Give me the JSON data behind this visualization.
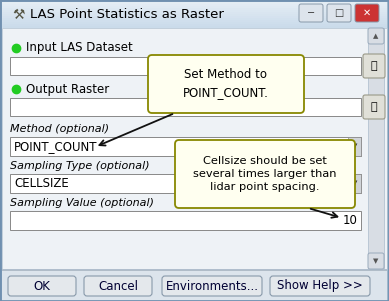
{
  "title": "LAS Point Statistics as Raster",
  "title_bar_bg": "#c8daea",
  "title_bar_gradient": "#b8cede",
  "dialog_bg": "#eef2f6",
  "body_bg": "#eef2f6",
  "border_color": "#a0b8cc",
  "title_text_color": "#000000",
  "input_label": "Input LAS Dataset",
  "output_label": "Output Raster",
  "method_label": "Method (optional)",
  "method_value": "POINT_COUNT",
  "sampling_type_label": "Sampling Type (optional)",
  "sampling_type_value": "CELLSIZE",
  "sampling_value_label": "Sampling Value (optional)",
  "sampling_value": "10",
  "callout1_text": "Set Method to\nPOINT_COUNT.",
  "callout2_text": "Cellsize should be set\nseveral times larger than\nlidar point spacing.",
  "btn_ok": "OK",
  "btn_cancel": "Cancel",
  "btn_env": "Environments...",
  "btn_help": "Show Help >>",
  "green_dot_color": "#22cc22",
  "callout_bg": "#fffff0",
  "callout_border": "#888800",
  "field_bg": "#ffffff",
  "field_border": "#888888",
  "scrollbar_bg": "#d8dde4",
  "btn_bg": "#e4e8ec",
  "btn_border": "#8899aa",
  "btn_footer_bg": "#dde4ec",
  "separator_color": "#b0bcc8",
  "win_btn_normal": "#dde4ec",
  "win_btn_close": "#cc3333",
  "win_btn_border": "#8899aa",
  "folder_btn_bg": "#e0e0d8",
  "folder_btn_border": "#999988",
  "dropdown_arrow_color": "#444444"
}
